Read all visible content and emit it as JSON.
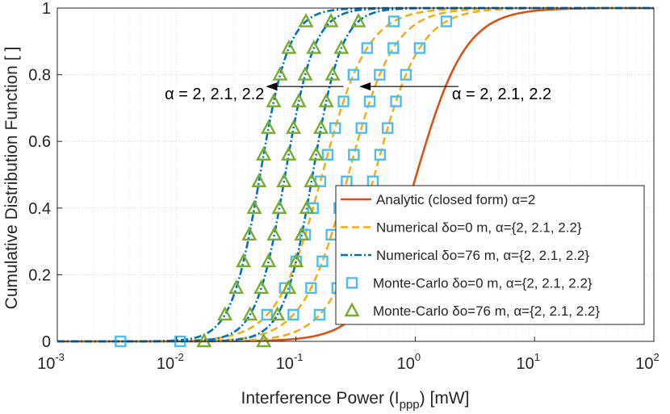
{
  "chart_data": {
    "type": "line",
    "xlabel": "Interference Power (I",
    "xlabel_sub": "ppp",
    "xlabel_suffix": ") [mW]",
    "ylabel": "Cumulative Distribution Function  [ ]",
    "xscale": "log",
    "xlim": [
      0.001,
      100
    ],
    "ylim": [
      0,
      1
    ],
    "grid": true,
    "x_ticks": [
      {
        "base": "10",
        "exp": "-3",
        "value": 0.001
      },
      {
        "base": "10",
        "exp": "-2",
        "value": 0.01
      },
      {
        "base": "10",
        "exp": "-1",
        "value": 0.1
      },
      {
        "base": "10",
        "exp": "0",
        "value": 1
      },
      {
        "base": "10",
        "exp": "1",
        "value": 10
      },
      {
        "base": "10",
        "exp": "2",
        "value": 100
      }
    ],
    "y_ticks": [
      {
        "label": "0",
        "value": 0
      },
      {
        "label": "0.2",
        "value": 0.2
      },
      {
        "label": "0.4",
        "value": 0.4
      },
      {
        "label": "0.6",
        "value": 0.6
      },
      {
        "label": "0.8",
        "value": 0.8
      },
      {
        "label": "1",
        "value": 1
      }
    ],
    "colors": {
      "analytic": "#D95319",
      "numerical0": "#EDB120",
      "numerical76": "#0072BD",
      "mc_square": "#4DBEEE",
      "mc_triangle": "#77AC30",
      "axis": "#262626",
      "grid": "#dcdcdc"
    },
    "curves": [
      {
        "name": "Analytic closed form",
        "kind": "analytic",
        "median_log10": 0.01,
        "slope": 2.1,
        "shift": 0
      },
      {
        "name": "Numerical d0 a2",
        "kind": "numerical0",
        "median_log10": -0.34,
        "slope": 2.3,
        "shift": 0
      },
      {
        "name": "Numerical d0 a2.1",
        "kind": "numerical0",
        "median_log10": -0.56,
        "slope": 2.3,
        "shift": 0
      },
      {
        "name": "Numerical d0 a2.2",
        "kind": "numerical0",
        "median_log10": -0.78,
        "slope": 2.3,
        "shift": 0
      },
      {
        "name": "Numerical d76 a2",
        "kind": "numerical76",
        "median_log10": -0.86,
        "slope": 3.6,
        "shift": 0
      },
      {
        "name": "Numerical d76 a2.1",
        "kind": "numerical76",
        "median_log10": -1.09,
        "slope": 3.6,
        "shift": 0
      },
      {
        "name": "Numerical d76 a2.2",
        "kind": "numerical76",
        "median_log10": -1.3,
        "slope": 3.6,
        "shift": 0
      }
    ],
    "markers": [
      {
        "kind": "mc_square",
        "median_log10": -0.34,
        "slope": 2.3,
        "y": [
          0,
          0.08,
          0.16,
          0.24,
          0.32,
          0.4,
          0.48,
          0.56,
          0.64,
          0.72,
          0.8,
          0.88,
          0.96
        ]
      },
      {
        "kind": "mc_square",
        "median_log10": -0.56,
        "slope": 2.3,
        "y": [
          0.08,
          0.16,
          0.24,
          0.32,
          0.4,
          0.48,
          0.56,
          0.64,
          0.72,
          0.8,
          0.88
        ]
      },
      {
        "kind": "mc_square",
        "median_log10": -0.78,
        "slope": 2.3,
        "y": [
          0,
          0.08,
          0.16,
          0.24,
          0.32,
          0.4,
          0.48,
          0.56,
          0.64,
          0.72,
          0.8,
          0.88,
          0.96
        ]
      },
      {
        "kind": "mc_triangle",
        "median_log10": -0.86,
        "slope": 3.6,
        "y": [
          0,
          0.08,
          0.16,
          0.24,
          0.32,
          0.4,
          0.48,
          0.56,
          0.64,
          0.72,
          0.8,
          0.88,
          0.96
        ]
      },
      {
        "kind": "mc_triangle",
        "median_log10": -1.09,
        "slope": 3.6,
        "y": [
          0.08,
          0.16,
          0.24,
          0.32,
          0.4,
          0.48,
          0.56,
          0.64,
          0.72,
          0.8,
          0.88,
          0.96
        ]
      },
      {
        "kind": "mc_triangle",
        "median_log10": -1.3,
        "slope": 3.6,
        "y": [
          0,
          0.08,
          0.16,
          0.24,
          0.32,
          0.4,
          0.48,
          0.56,
          0.64,
          0.72,
          0.8,
          0.88,
          0.96
        ]
      }
    ],
    "annotations": [
      {
        "name": "annotation-left",
        "text": "α = 2, 2.1, 2.2",
        "arrow_from_x": 0.25,
        "arrow_to_x": 0.056,
        "y": 0.755
      },
      {
        "name": "annotation-right",
        "text": "α = 2, 2.1, 2.2",
        "arrow_from_x": 2.3,
        "arrow_to_x": 0.34,
        "y": 0.755
      }
    ],
    "legend": {
      "placement": "bottom-right",
      "entries": [
        {
          "kind": "analytic",
          "text": "Analytic (closed form) α=2"
        },
        {
          "kind": "numerical0",
          "text": "Numerical  δo=0 m, α={2, 2.1, 2.2}"
        },
        {
          "kind": "numerical76",
          "text": "Numerical  δo=76 m, α={2, 2.1, 2.2}"
        },
        {
          "kind": "mc_square",
          "text": "Monte-Carlo δo=0 m, α={2, 2.1, 2.2}"
        },
        {
          "kind": "mc_triangle",
          "text": "Monte-Carlo δo=76 m, α={2, 2.1, 2.2}"
        }
      ]
    }
  }
}
